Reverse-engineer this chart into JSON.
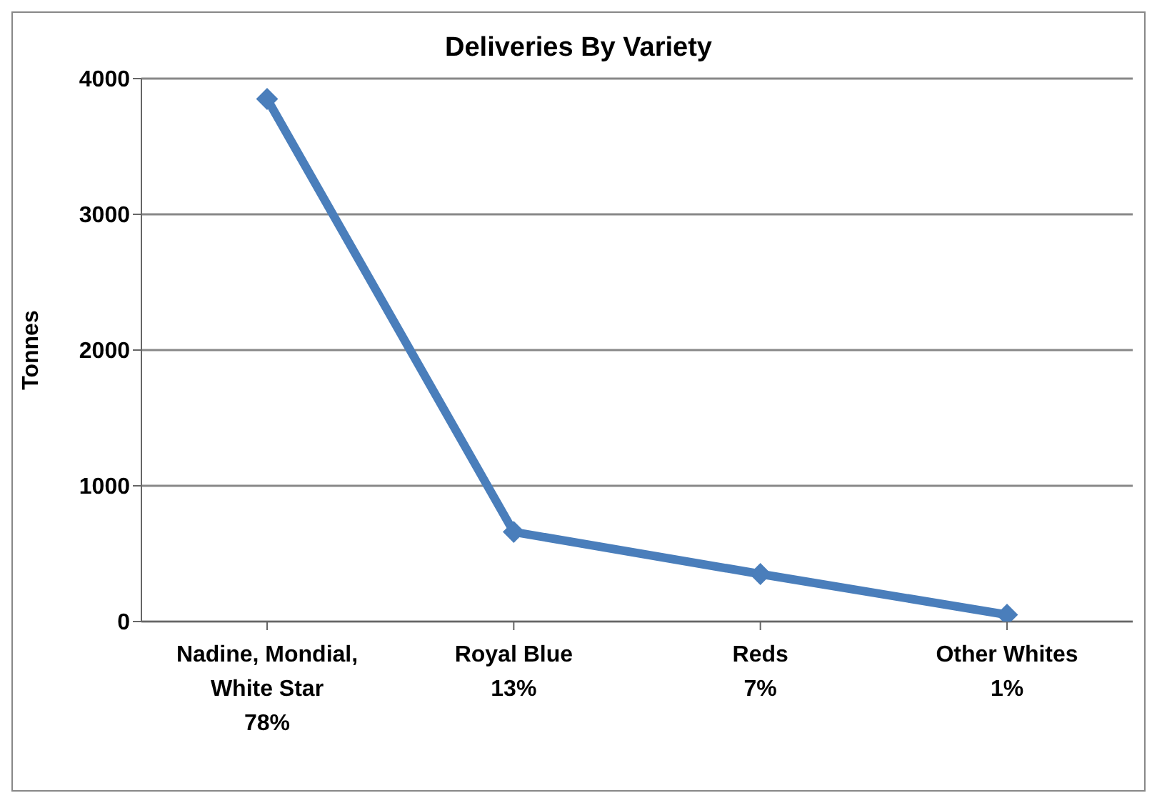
{
  "chart_data": {
    "type": "line",
    "title": "Deliveries By Variety",
    "ylabel": "Tonnes",
    "categories": [
      "Nadine, Mondial,\nWhite Star\n78%",
      "Royal Blue\n13%",
      "Reds\n7%",
      "Other Whites\n1%"
    ],
    "series": [
      {
        "color": "#4a7ebb",
        "values": [
          3850,
          660,
          350,
          50
        ]
      }
    ],
    "ylim": [
      0,
      4000
    ],
    "yticks": [
      0,
      1000,
      2000,
      3000,
      4000
    ],
    "grid": "y",
    "legend": false,
    "marker": "diamond",
    "line_style": "solid"
  }
}
